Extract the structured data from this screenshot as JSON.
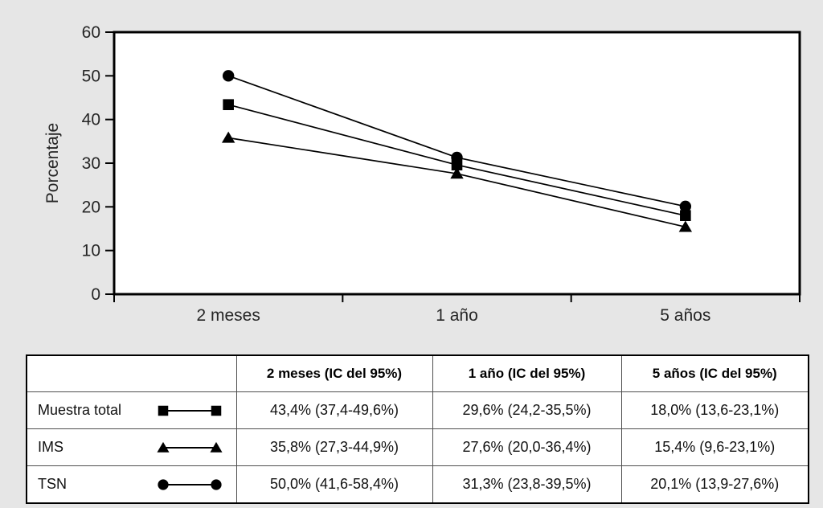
{
  "chart_data": {
    "type": "line",
    "title": "",
    "xlabel": "",
    "ylabel": "Porcentaje",
    "ylim": [
      0,
      60
    ],
    "yticks": [
      0,
      10,
      20,
      30,
      40,
      50,
      60
    ],
    "grid": false,
    "legend": "shown-in-table-below",
    "categories": [
      "2 meses",
      "1 año",
      "5 años"
    ],
    "series": [
      {
        "name": "Muestra total",
        "marker": "square",
        "values": [
          43.4,
          29.6,
          18.0
        ]
      },
      {
        "name": "IMS",
        "marker": "triangle",
        "values": [
          35.8,
          27.6,
          15.4
        ]
      },
      {
        "name": "TSN",
        "marker": "circle",
        "values": [
          50.0,
          31.3,
          20.1
        ]
      }
    ]
  },
  "table": {
    "headers": [
      "",
      "2 meses (IC del 95%)",
      "1 año (IC del 95%)",
      "5 años (IC del 95%)"
    ],
    "rows": [
      {
        "label": "Muestra total",
        "marker": "square",
        "cells": [
          "43,4% (37,4-49,6%)",
          "29,6% (24,2-35,5%)",
          "18,0%  (13,6-23,1%)"
        ]
      },
      {
        "label": "IMS",
        "marker": "triangle",
        "cells": [
          "35,8% (27,3-44,9%)",
          "27,6% (20,0-36,4%)",
          "15,4% (9,6-23,1%)"
        ]
      },
      {
        "label": "TSN",
        "marker": "circle",
        "cells": [
          "50,0% (41,6-58,4%)",
          "31,3% (23,8-39,5%)",
          "20,1% (13,9-27,6%)"
        ]
      }
    ]
  }
}
